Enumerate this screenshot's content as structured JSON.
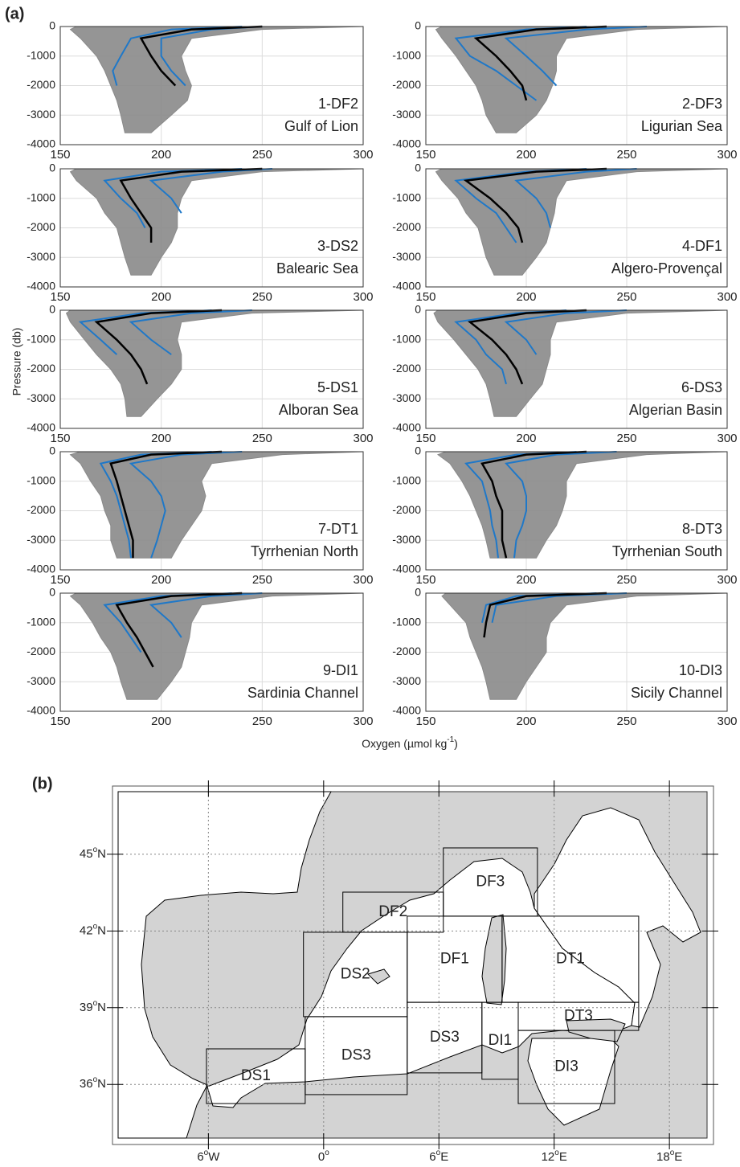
{
  "figure": {
    "tag": "(a)",
    "y_label": "Pressure (db)",
    "x_label": "Oxygen (µmol kg",
    "x_label_sup": "-1",
    "x_label_end": ")"
  },
  "chart_data": [
    {
      "type": "line",
      "panel_id": "1-DF2",
      "region": "Gulf of Lion",
      "xlim": [
        150,
        300
      ],
      "ylim": [
        -4000,
        0
      ],
      "xticks": [
        150,
        200,
        250,
        300
      ],
      "yticks": [
        0,
        -1000,
        -2000,
        -3000,
        -4000
      ],
      "grid": true,
      "y": [
        0,
        -100,
        -400,
        -1000,
        -1500,
        -2000,
        -2500,
        -3000,
        -3600
      ],
      "envelope": {
        "color": "#8a8a8a",
        "min": [
          158,
          155,
          160,
          168,
          172,
          175,
          178,
          180,
          182
        ],
        "max": [
          300,
          250,
          215,
          210,
          212,
          215,
          213,
          205,
          195
        ]
      },
      "series": [
        {
          "color": "#1f78c8",
          "values": [
            240,
            205,
            185,
            180,
            176,
            178,
            null,
            null,
            null
          ]
        },
        {
          "color": "#1f78c8",
          "values": [
            250,
            225,
            200,
            200,
            205,
            212,
            null,
            null,
            null
          ]
        },
        {
          "color": "#000000",
          "values": [
            250,
            215,
            190,
            195,
            200,
            207,
            null,
            null,
            null
          ]
        }
      ]
    },
    {
      "type": "line",
      "panel_id": "2-DF3",
      "region": "Ligurian Sea",
      "xlim": [
        150,
        300
      ],
      "ylim": [
        -4000,
        0
      ],
      "xticks": [
        150,
        200,
        250,
        300
      ],
      "yticks": [
        0,
        -1000,
        -2000,
        -3000,
        -4000
      ],
      "grid": true,
      "y": [
        0,
        -100,
        -400,
        -1000,
        -1500,
        -2000,
        -2500,
        -3000,
        -3600
      ],
      "envelope": {
        "color": "#8a8a8a",
        "min": [
          158,
          155,
          158,
          165,
          170,
          175,
          178,
          180,
          185
        ],
        "max": [
          300,
          255,
          220,
          215,
          215,
          213,
          210,
          205,
          195
        ]
      },
      "series": [
        {
          "color": "#1f78c8",
          "values": [
            230,
            200,
            165,
            172,
            185,
            195,
            205,
            null,
            null
          ]
        },
        {
          "color": "#1f78c8",
          "values": [
            260,
            230,
            190,
            200,
            208,
            215,
            null,
            null,
            null
          ]
        },
        {
          "color": "#000000",
          "values": [
            240,
            205,
            175,
            185,
            192,
            198,
            200,
            null,
            null
          ]
        }
      ]
    },
    {
      "type": "line",
      "panel_id": "3-DS2",
      "region": "Balearic Sea",
      "xlim": [
        150,
        300
      ],
      "ylim": [
        -4000,
        0
      ],
      "xticks": [
        150,
        200,
        250,
        300
      ],
      "yticks": [
        0,
        -1000,
        -2000,
        -3000,
        -4000
      ],
      "grid": true,
      "y": [
        0,
        -100,
        -400,
        -1000,
        -1500,
        -2000,
        -2500,
        -3000,
        -3600
      ],
      "envelope": {
        "color": "#8a8a8a",
        "min": [
          158,
          155,
          158,
          168,
          172,
          178,
          180,
          182,
          185
        ],
        "max": [
          300,
          250,
          215,
          210,
          208,
          208,
          205,
          200,
          195
        ]
      },
      "series": [
        {
          "color": "#1f78c8",
          "values": [
            240,
            200,
            172,
            180,
            188,
            192,
            null,
            null,
            null
          ]
        },
        {
          "color": "#1f78c8",
          "values": [
            255,
            230,
            195,
            205,
            210,
            null,
            null,
            null,
            null
          ]
        },
        {
          "color": "#000000",
          "values": [
            250,
            210,
            180,
            185,
            190,
            195,
            195,
            null,
            null
          ]
        }
      ]
    },
    {
      "type": "line",
      "panel_id": "4-DF1",
      "region": "Algero-Provençal",
      "xlim": [
        150,
        300
      ],
      "ylim": [
        -4000,
        0
      ],
      "xticks": [
        150,
        200,
        250,
        300
      ],
      "yticks": [
        0,
        -1000,
        -2000,
        -3000,
        -4000
      ],
      "grid": true,
      "y": [
        0,
        -100,
        -400,
        -1000,
        -1500,
        -2000,
        -2500,
        -3000,
        -3600
      ],
      "envelope": {
        "color": "#8a8a8a",
        "min": [
          158,
          155,
          158,
          166,
          170,
          176,
          178,
          180,
          184
        ],
        "max": [
          300,
          255,
          220,
          215,
          214,
          212,
          210,
          205,
          198
        ]
      },
      "series": [
        {
          "color": "#1f78c8",
          "values": [
            230,
            200,
            165,
            175,
            185,
            190,
            195,
            null,
            null
          ]
        },
        {
          "color": "#1f78c8",
          "values": [
            255,
            230,
            195,
            205,
            210,
            212,
            null,
            null,
            null
          ]
        },
        {
          "color": "#000000",
          "values": [
            240,
            205,
            170,
            182,
            190,
            196,
            198,
            null,
            null
          ]
        }
      ]
    },
    {
      "type": "line",
      "panel_id": "5-DS1",
      "region": "Alboran Sea",
      "xlim": [
        150,
        300
      ],
      "ylim": [
        -4000,
        0
      ],
      "xticks": [
        150,
        200,
        250,
        300
      ],
      "yticks": [
        0,
        -1000,
        -2000,
        -3000,
        -4000
      ],
      "grid": true,
      "y": [
        0,
        -100,
        -400,
        -1000,
        -1500,
        -2000,
        -2500,
        -3000,
        -3600
      ],
      "envelope": {
        "color": "#8a8a8a",
        "min": [
          155,
          153,
          155,
          162,
          168,
          175,
          180,
          182,
          183
        ],
        "max": [
          300,
          245,
          210,
          208,
          210,
          210,
          205,
          198,
          190
        ]
      },
      "series": [
        {
          "color": "#1f78c8",
          "values": [
            225,
            190,
            160,
            170,
            178,
            null,
            null,
            null,
            null
          ]
        },
        {
          "color": "#1f78c8",
          "values": [
            245,
            215,
            185,
            195,
            205,
            null,
            null,
            null,
            null
          ]
        },
        {
          "color": "#000000",
          "values": [
            230,
            195,
            168,
            178,
            185,
            190,
            193,
            null,
            null
          ]
        }
      ]
    },
    {
      "type": "line",
      "panel_id": "6-DS3",
      "region": "Algerian Basin",
      "xlim": [
        150,
        300
      ],
      "ylim": [
        -4000,
        0
      ],
      "xticks": [
        150,
        200,
        250,
        300
      ],
      "yticks": [
        0,
        -1000,
        -2000,
        -3000,
        -4000
      ],
      "grid": true,
      "y": [
        0,
        -100,
        -400,
        -1000,
        -1500,
        -2000,
        -2500,
        -3000,
        -3600
      ],
      "envelope": {
        "color": "#8a8a8a",
        "min": [
          156,
          154,
          156,
          164,
          170,
          176,
          180,
          182,
          184
        ],
        "max": [
          300,
          250,
          215,
          212,
          212,
          210,
          208,
          202,
          195
        ]
      },
      "series": [
        {
          "color": "#1f78c8",
          "values": [
            220,
            195,
            165,
            175,
            180,
            188,
            190,
            null,
            null
          ]
        },
        {
          "color": "#1f78c8",
          "values": [
            250,
            220,
            190,
            200,
            205,
            null,
            null,
            null,
            null
          ]
        },
        {
          "color": "#000000",
          "values": [
            230,
            200,
            172,
            183,
            190,
            195,
            198,
            null,
            null
          ]
        }
      ]
    },
    {
      "type": "line",
      "panel_id": "7-DT1",
      "region": "Tyrrhenian North",
      "xlim": [
        150,
        300
      ],
      "ylim": [
        -4000,
        0
      ],
      "xticks": [
        150,
        200,
        250,
        300
      ],
      "yticks": [
        0,
        -1000,
        -2000,
        -3000,
        -4000
      ],
      "grid": true,
      "y": [
        0,
        -100,
        -400,
        -1000,
        -1500,
        -2000,
        -2500,
        -3000,
        -3600
      ],
      "envelope": {
        "color": "#8a8a8a",
        "min": [
          160,
          155,
          160,
          165,
          170,
          172,
          175,
          175,
          178
        ],
        "max": [
          300,
          260,
          225,
          220,
          222,
          220,
          215,
          210,
          205
        ]
      },
      "series": [
        {
          "color": "#1f78c8",
          "values": [
            225,
            190,
            170,
            175,
            178,
            180,
            182,
            184,
            185
          ]
        },
        {
          "color": "#1f78c8",
          "values": [
            240,
            210,
            185,
            195,
            200,
            202,
            200,
            198,
            195
          ]
        },
        {
          "color": "#000000",
          "values": [
            230,
            195,
            175,
            178,
            180,
            182,
            184,
            186,
            186
          ]
        }
      ]
    },
    {
      "type": "line",
      "panel_id": "8-DT3",
      "region": "Tyrrhenian South",
      "xlim": [
        150,
        300
      ],
      "ylim": [
        -4000,
        0
      ],
      "xticks": [
        150,
        200,
        250,
        300
      ],
      "yticks": [
        0,
        -1000,
        -2000,
        -3000,
        -4000
      ],
      "grid": true,
      "y": [
        0,
        -100,
        -400,
        -1000,
        -1500,
        -2000,
        -2500,
        -3000,
        -3600
      ],
      "envelope": {
        "color": "#8a8a8a",
        "min": [
          160,
          156,
          162,
          168,
          172,
          175,
          178,
          180,
          182
        ],
        "max": [
          300,
          260,
          225,
          220,
          220,
          218,
          215,
          210,
          205
        ]
      },
      "series": [
        {
          "color": "#1f78c8",
          "values": [
            225,
            195,
            170,
            178,
            180,
            182,
            183,
            185,
            186
          ]
        },
        {
          "color": "#1f78c8",
          "values": [
            245,
            215,
            190,
            198,
            200,
            200,
            198,
            195,
            194
          ]
        },
        {
          "color": "#000000",
          "values": [
            230,
            200,
            178,
            183,
            185,
            188,
            188,
            188,
            190
          ]
        }
      ]
    },
    {
      "type": "line",
      "panel_id": "9-DI1",
      "region": "Sardinia Channel",
      "xlim": [
        150,
        300
      ],
      "ylim": [
        -4000,
        0
      ],
      "xticks": [
        150,
        200,
        250,
        300
      ],
      "yticks": [
        0,
        -1000,
        -2000,
        -3000,
        -4000
      ],
      "grid": true,
      "y": [
        0,
        -100,
        -400,
        -1000,
        -1500,
        -2000,
        -2500,
        -3000,
        -3600
      ],
      "envelope": {
        "color": "#8a8a8a",
        "min": [
          158,
          155,
          160,
          166,
          170,
          175,
          178,
          180,
          183
        ],
        "max": [
          300,
          255,
          220,
          215,
          214,
          212,
          210,
          205,
          198
        ]
      },
      "series": [
        {
          "color": "#1f78c8",
          "values": [
            235,
            200,
            172,
            180,
            185,
            190,
            null,
            null,
            null
          ]
        },
        {
          "color": "#1f78c8",
          "values": [
            250,
            225,
            195,
            205,
            210,
            null,
            null,
            null,
            null
          ]
        },
        {
          "color": "#000000",
          "values": [
            240,
            205,
            178,
            183,
            188,
            192,
            196,
            null,
            null
          ]
        }
      ]
    },
    {
      "type": "line",
      "panel_id": "10-DI3",
      "region": "Sicily Channel",
      "xlim": [
        150,
        300
      ],
      "ylim": [
        -4000,
        0
      ],
      "xticks": [
        150,
        200,
        250,
        300
      ],
      "yticks": [
        0,
        -1000,
        -2000,
        -3000,
        -4000
      ],
      "grid": true,
      "y": [
        0,
        -100,
        -400,
        -1000,
        -1500,
        -2000,
        -2500,
        -3000,
        -3600
      ],
      "envelope": {
        "color": "#8a8a8a",
        "min": [
          160,
          158,
          162,
          170,
          172,
          175,
          178,
          180,
          182
        ],
        "max": [
          300,
          255,
          220,
          212,
          210,
          210,
          205,
          200,
          195
        ]
      },
      "series": [
        {
          "color": "#1f78c8",
          "values": [
            235,
            195,
            180,
            178,
            null,
            null,
            null,
            null,
            null
          ]
        },
        {
          "color": "#1f78c8",
          "values": [
            250,
            215,
            185,
            183,
            null,
            null,
            null,
            null,
            null
          ]
        },
        {
          "color": "#000000",
          "values": [
            240,
            200,
            182,
            180,
            179,
            null,
            null,
            null,
            null
          ]
        }
      ]
    }
  ],
  "map": {
    "tag": "(b)",
    "lonlim": [
      -10.7,
      19.96
    ],
    "latlim": [
      33.9,
      47.45
    ],
    "lonticks": [
      {
        "value": -6,
        "label": "6",
        "sup": "o",
        "hemi": "W"
      },
      {
        "value": 0,
        "label": "0",
        "sup": "o"
      },
      {
        "value": 6,
        "label": "6",
        "sup": "o",
        "hemi": "E"
      },
      {
        "value": 12,
        "label": "12",
        "sup": "o",
        "hemi": "E"
      },
      {
        "value": 18,
        "label": "18",
        "sup": "o",
        "hemi": "E"
      }
    ],
    "latticks": [
      {
        "value": 45,
        "label": "45",
        "sup": "o",
        "hemi": "N"
      },
      {
        "value": 42,
        "label": "42",
        "sup": "o",
        "hemi": "N"
      },
      {
        "value": 39,
        "label": "39",
        "sup": "o",
        "hemi": "N"
      },
      {
        "value": 36,
        "label": "36",
        "sup": "o",
        "hemi": "N"
      }
    ],
    "regions": [
      {
        "label": "DS1",
        "lon": [
          -6.1,
          -0.96
        ],
        "lat": [
          35.25,
          37.39
        ]
      },
      {
        "label": "DS3",
        "lon": [
          -0.96,
          4.35
        ],
        "lat": [
          35.6,
          38.65
        ]
      },
      {
        "label": "DS2",
        "lon": [
          -1.05,
          4.35
        ],
        "lat": [
          38.65,
          41.95
        ]
      },
      {
        "label": "DF2",
        "lon": [
          1.0,
          6.23
        ],
        "lat": [
          41.95,
          43.52
        ]
      },
      {
        "label": "DF3",
        "lon": [
          6.23,
          11.13
        ],
        "lat": [
          42.58,
          45.25
        ]
      },
      {
        "label": "DF1",
        "lon": [
          4.35,
          9.29
        ],
        "lat": [
          39.21,
          42.58
        ]
      },
      {
        "label": "DT1",
        "lon": [
          9.29,
          16.4
        ],
        "lat": [
          39.21,
          42.58
        ]
      },
      {
        "label": "DS3",
        "lon": [
          4.35,
          8.24
        ],
        "lat": [
          36.45,
          39.21
        ]
      },
      {
        "label": "DI1",
        "lon": [
          8.24,
          10.13
        ],
        "lat": [
          36.2,
          39.21
        ]
      },
      {
        "label": "DT3",
        "lon": [
          10.13,
          16.4
        ],
        "lat": [
          38.11,
          39.21
        ]
      },
      {
        "label": "DI3",
        "lon": [
          10.13,
          15.15
        ],
        "lat": [
          35.25,
          38.11
        ]
      }
    ]
  }
}
